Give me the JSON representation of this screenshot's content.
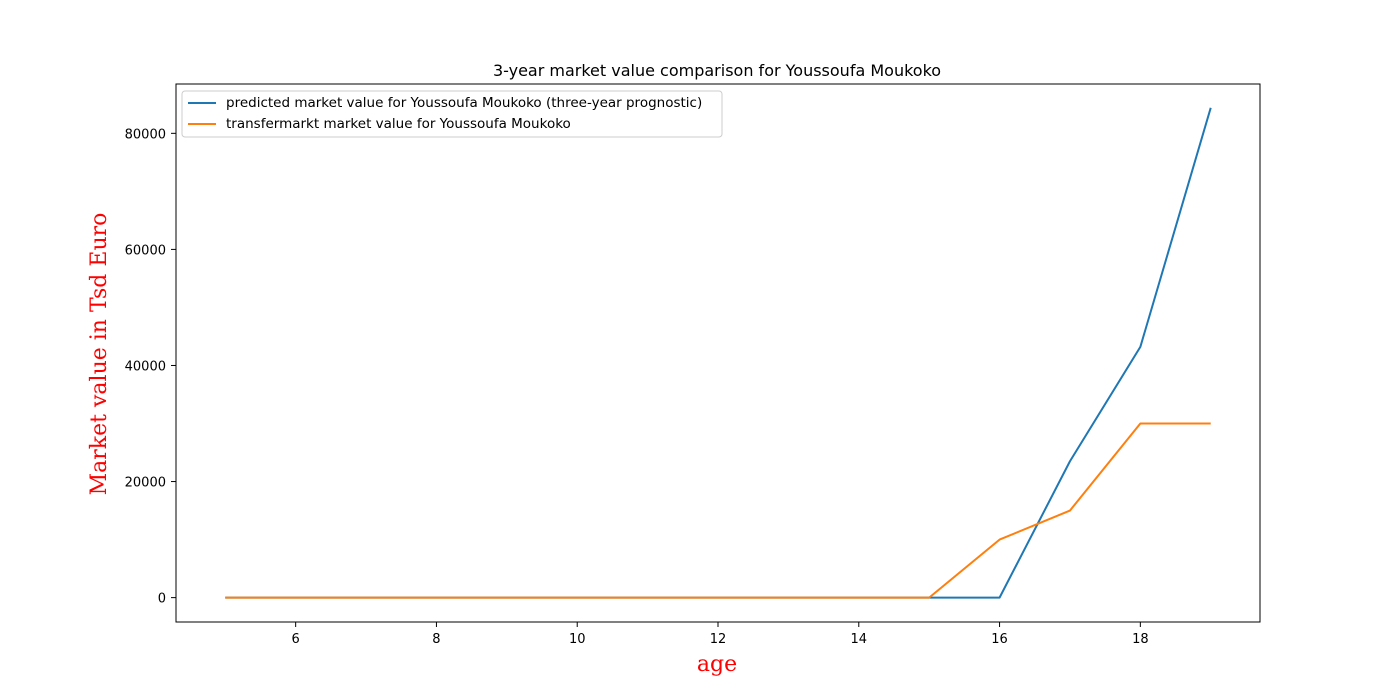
{
  "chart_data": {
    "type": "line",
    "title": "3-year market value comparison for Youssoufa Moukoko",
    "xlabel": "age",
    "ylabel": "Market value in Tsd Euro",
    "label_color": "#ff0000",
    "xlim": [
      4.3,
      19.7
    ],
    "ylim": [
      -4200,
      88500
    ],
    "xticks": [
      6,
      8,
      10,
      12,
      14,
      16,
      18
    ],
    "yticks": [
      0,
      20000,
      40000,
      60000,
      80000
    ],
    "grid": false,
    "legend_position": "upper left",
    "series": [
      {
        "name": "predicted market value for Youssoufa Moukoko (three-year prognostic)",
        "color": "#1f77b4",
        "x": [
          5,
          6,
          7,
          8,
          9,
          10,
          11,
          12,
          13,
          14,
          15,
          16,
          17,
          18,
          19
        ],
        "y": [
          0,
          0,
          0,
          0,
          0,
          0,
          0,
          0,
          0,
          0,
          0,
          0,
          23500,
          43200,
          84400
        ]
      },
      {
        "name": "transfermarkt market value for Youssoufa Moukoko",
        "color": "#ff7f0e",
        "x": [
          5,
          6,
          7,
          8,
          9,
          10,
          11,
          12,
          13,
          14,
          15,
          16,
          17,
          18,
          19
        ],
        "y": [
          0,
          0,
          0,
          0,
          0,
          0,
          0,
          0,
          0,
          0,
          0,
          10000,
          15000,
          30000,
          30000
        ]
      }
    ]
  }
}
